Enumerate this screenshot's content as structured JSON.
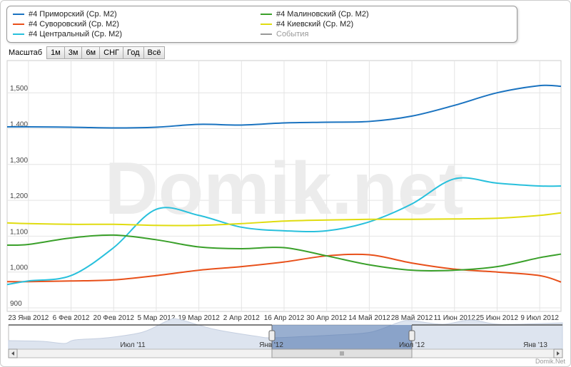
{
  "legend": {
    "items": [
      {
        "label": "#4 Приморский (Ср. М2)",
        "color": "#1a73c0"
      },
      {
        "label": "#4 Суворовский (Ср. М2)",
        "color": "#e8501a"
      },
      {
        "label": "#4 Центральный (Ср. М2)",
        "color": "#28c0dc"
      },
      {
        "label": "#4 Малиновский (Ср. М2)",
        "color": "#3aa02a"
      },
      {
        "label": "#4 Киевский (Ср. М2)",
        "color": "#e0dc10"
      },
      {
        "label": "События",
        "color": "#999999"
      }
    ]
  },
  "zoom": {
    "label": "Масштаб",
    "buttons": [
      "1м",
      "3м",
      "6м",
      "СНГ",
      "Год",
      "Всё"
    ]
  },
  "watermark": "Domik.net",
  "footer": "Domik.Net",
  "navigator": {
    "labels": [
      "Июл '11",
      "Янв '12",
      "Июл '12",
      "Янв '13"
    ],
    "selected_range": [
      "Янв '12",
      "Июл '12"
    ]
  },
  "chart_data": {
    "type": "line",
    "ylim": [
      900,
      1600
    ],
    "yticks": [
      "900",
      "1,000",
      "1,100",
      "1,200",
      "1,300",
      "1,400",
      "1,500"
    ],
    "ytick_values": [
      900,
      1000,
      1100,
      1200,
      1300,
      1400,
      1500
    ],
    "xlim": [
      "2012-01-16",
      "2012-07-16"
    ],
    "xticks": [
      "23 Янв 2012",
      "6 Фев 2012",
      "20 Фев 2012",
      "5 Мар 2012",
      "19 Мар 2012",
      "2 Апр 2012",
      "16 Апр 2012",
      "30 Апр 2012",
      "14 Май 2012",
      "28 Май 2012",
      "11 Июн 2012",
      "25 Июн 2012",
      "9 Июл 2012"
    ],
    "xtick_dates": [
      "2012-01-23",
      "2012-02-06",
      "2012-02-20",
      "2012-03-05",
      "2012-03-19",
      "2012-04-02",
      "2012-04-16",
      "2012-04-30",
      "2012-05-14",
      "2012-05-28",
      "2012-06-11",
      "2012-06-25",
      "2012-07-09"
    ],
    "grid": true,
    "x": [
      "2012-01-16",
      "2012-01-23",
      "2012-02-06",
      "2012-02-20",
      "2012-03-05",
      "2012-03-19",
      "2012-04-02",
      "2012-04-16",
      "2012-04-30",
      "2012-05-14",
      "2012-05-28",
      "2012-06-11",
      "2012-06-25",
      "2012-07-09",
      "2012-07-16"
    ],
    "series": [
      {
        "name": "#4 Приморский (Ср. М2)",
        "color": "#1a73c0",
        "values": [
          1405,
          1405,
          1404,
          1402,
          1404,
          1412,
          1410,
          1416,
          1418,
          1420,
          1435,
          1465,
          1500,
          1520,
          1518
        ]
      },
      {
        "name": "#4 Суворовский (Ср. М2)",
        "color": "#e8501a",
        "values": [
          973,
          973,
          975,
          978,
          990,
          1005,
          1015,
          1028,
          1045,
          1048,
          1025,
          1008,
          1000,
          990,
          972
        ]
      },
      {
        "name": "#4 Центральный (Ср. М2)",
        "color": "#28c0dc",
        "values": [
          965,
          975,
          990,
          1068,
          1175,
          1158,
          1125,
          1115,
          1115,
          1140,
          1190,
          1260,
          1248,
          1240,
          1240
        ]
      },
      {
        "name": "#4 Малиновский (Ср. М2)",
        "color": "#3aa02a",
        "values": [
          1075,
          1077,
          1095,
          1103,
          1090,
          1070,
          1065,
          1068,
          1045,
          1020,
          1005,
          1005,
          1015,
          1040,
          1050
        ]
      },
      {
        "name": "#4 Киевский (Ср. М2)",
        "color": "#e0dc10",
        "values": [
          1137,
          1135,
          1133,
          1133,
          1130,
          1130,
          1135,
          1142,
          1145,
          1147,
          1147,
          1148,
          1150,
          1158,
          1165
        ]
      }
    ]
  }
}
